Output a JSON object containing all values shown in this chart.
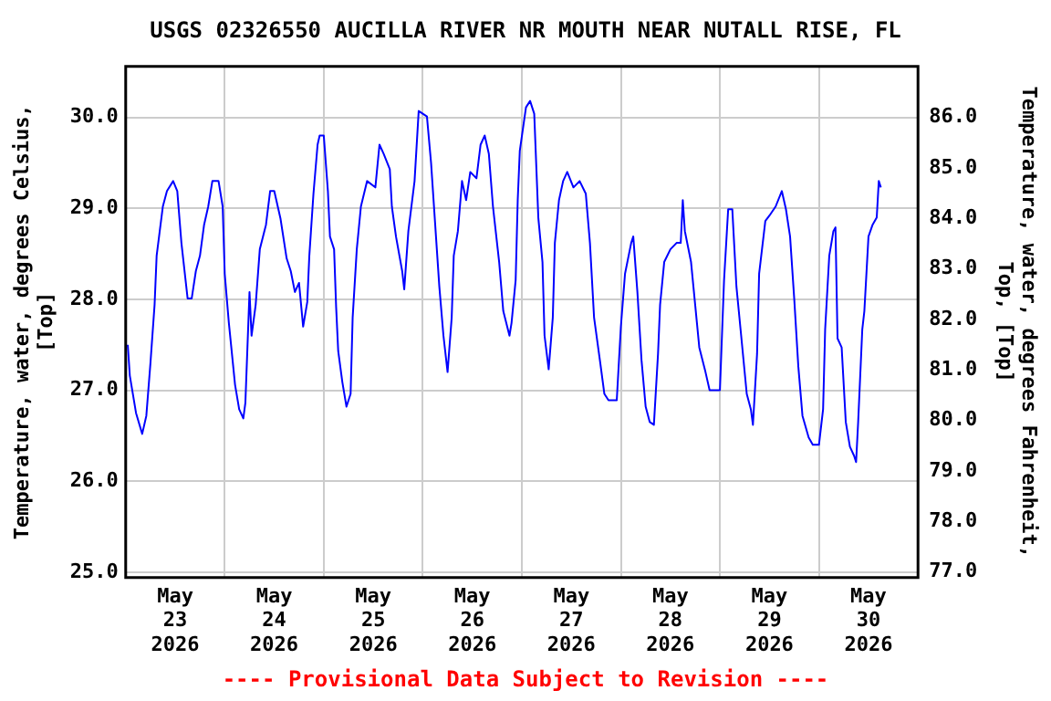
{
  "chart_data": {
    "type": "line",
    "title": "USGS 02326550 AUCILLA RIVER NR MOUTH NEAR NUTALL RISE, FL",
    "ylabel": "Temperature, water, degrees Celsius,\n[Top]",
    "y2label": "Temperature, water, degrees Fahrenheit,\nTop, [Top]",
    "annotations": [
      "---- Provisional Data Subject to Revision ----"
    ],
    "x": [
      "2026-05-23T00:30",
      "2026-05-23T01:00",
      "2026-05-23T02:30",
      "2026-05-23T04:00",
      "2026-05-23T05:00",
      "2026-05-23T06:00",
      "2026-05-23T07:00",
      "2026-05-23T07:30",
      "2026-05-23T09:00",
      "2026-05-23T10:00",
      "2026-05-23T11:30",
      "2026-05-23T12:30",
      "2026-05-23T13:30",
      "2026-05-23T15:00",
      "2026-05-23T16:00",
      "2026-05-23T17:00",
      "2026-05-23T18:00",
      "2026-05-23T19:00",
      "2026-05-23T20:00",
      "2026-05-23T21:00",
      "2026-05-23T22:30",
      "2026-05-23T23:30",
      "2026-05-24T00:00",
      "2026-05-24T01:00",
      "2026-05-24T02:30",
      "2026-05-24T03:30",
      "2026-05-24T04:30",
      "2026-05-24T05:00",
      "2026-05-24T06:00",
      "2026-05-24T06:30",
      "2026-05-24T07:30",
      "2026-05-24T08:30",
      "2026-05-24T10:00",
      "2026-05-24T11:00",
      "2026-05-24T12:00",
      "2026-05-24T13:00",
      "2026-05-24T13:30",
      "2026-05-24T15:00",
      "2026-05-24T16:00",
      "2026-05-24T17:00",
      "2026-05-24T18:00",
      "2026-05-24T19:00",
      "2026-05-24T20:00",
      "2026-05-24T20:30",
      "2026-05-24T21:30",
      "2026-05-24T22:30",
      "2026-05-24T23:00",
      "2026-05-25T00:00",
      "2026-05-25T01:00",
      "2026-05-25T01:30",
      "2026-05-25T02:30",
      "2026-05-25T03:00",
      "2026-05-25T03:30",
      "2026-05-25T04:30",
      "2026-05-25T05:30",
      "2026-05-25T06:30",
      "2026-05-25T07:00",
      "2026-05-25T08:00",
      "2026-05-25T09:00",
      "2026-05-25T10:30",
      "2026-05-25T12:30",
      "2026-05-25T13:30",
      "2026-05-25T14:30",
      "2026-05-25T16:00",
      "2026-05-25T16:30",
      "2026-05-25T17:30",
      "2026-05-25T19:00",
      "2026-05-25T19:30",
      "2026-05-25T20:30",
      "2026-05-25T22:00",
      "2026-05-25T23:00",
      "2026-05-26T00:00",
      "2026-05-26T01:00",
      "2026-05-26T02:00",
      "2026-05-26T03:00",
      "2026-05-26T04:00",
      "2026-05-26T05:00",
      "2026-05-26T06:00",
      "2026-05-26T07:00",
      "2026-05-26T07:30",
      "2026-05-26T08:30",
      "2026-05-26T09:30",
      "2026-05-26T10:30",
      "2026-05-26T11:30",
      "2026-05-26T13:00",
      "2026-05-26T14:00",
      "2026-05-26T15:00",
      "2026-05-26T16:00",
      "2026-05-26T17:00",
      "2026-05-26T18:30",
      "2026-05-26T19:30",
      "2026-05-26T21:00",
      "2026-05-26T21:30",
      "2026-05-26T22:30",
      "2026-05-26T23:00",
      "2026-05-26T23:30",
      "2026-05-27T01:00",
      "2026-05-27T02:00",
      "2026-05-27T03:00",
      "2026-05-27T04:00",
      "2026-05-27T05:00",
      "2026-05-27T05:30",
      "2026-05-27T06:30",
      "2026-05-27T07:30",
      "2026-05-27T08:00",
      "2026-05-27T09:00",
      "2026-05-27T10:00",
      "2026-05-27T11:00",
      "2026-05-27T12:30",
      "2026-05-27T14:00",
      "2026-05-27T15:30",
      "2026-05-27T16:30",
      "2026-05-27T17:30",
      "2026-05-27T19:00",
      "2026-05-27T20:00",
      "2026-05-27T21:00",
      "2026-05-27T23:00",
      "2026-05-28T00:00",
      "2026-05-28T01:00",
      "2026-05-28T02:30",
      "2026-05-28T03:00",
      "2026-05-28T04:00",
      "2026-05-28T05:00",
      "2026-05-28T06:00",
      "2026-05-28T07:00",
      "2026-05-28T08:00",
      "2026-05-28T09:00",
      "2026-05-28T09:30",
      "2026-05-28T10:30",
      "2026-05-28T12:00",
      "2026-05-28T13:30",
      "2026-05-28T14:30",
      "2026-05-28T15:00",
      "2026-05-28T15:30",
      "2026-05-28T17:00",
      "2026-05-28T18:00",
      "2026-05-28T19:00",
      "2026-05-28T20:30",
      "2026-05-28T21:30",
      "2026-05-28T23:00",
      "2026-05-29T00:00",
      "2026-05-29T01:00",
      "2026-05-29T02:00",
      "2026-05-29T03:00",
      "2026-05-29T04:00",
      "2026-05-29T05:00",
      "2026-05-29T06:30",
      "2026-05-29T07:30",
      "2026-05-29T08:00",
      "2026-05-29T09:00",
      "2026-05-29T09:30",
      "2026-05-29T11:00",
      "2026-05-29T12:00",
      "2026-05-29T13:30",
      "2026-05-29T15:00",
      "2026-05-29T16:00",
      "2026-05-29T17:00",
      "2026-05-29T18:00",
      "2026-05-29T19:00",
      "2026-05-29T20:00",
      "2026-05-29T21:30",
      "2026-05-29T22:30",
      "2026-05-30T00:00",
      "2026-05-30T01:00",
      "2026-05-30T01:30",
      "2026-05-30T02:30",
      "2026-05-30T03:30",
      "2026-05-30T04:00",
      "2026-05-30T04:30",
      "2026-05-30T05:30",
      "2026-05-30T06:30",
      "2026-05-30T07:30",
      "2026-05-30T08:30",
      "2026-05-30T09:00",
      "2026-05-30T09:30",
      "2026-05-30T10:30",
      "2026-05-30T11:00",
      "2026-05-30T12:00",
      "2026-05-30T13:00",
      "2026-05-30T14:00",
      "2026-05-30T14:30",
      "2026-05-30T15:00"
    ],
    "series": [
      {
        "color": "#0000ff",
        "values": [
          27.5,
          27.16,
          26.75,
          26.52,
          26.72,
          27.3,
          27.94,
          28.48,
          29.02,
          29.19,
          29.3,
          29.19,
          28.62,
          28.01,
          28.01,
          28.31,
          28.48,
          28.82,
          29.02,
          29.3,
          29.3,
          29.02,
          28.28,
          27.74,
          27.06,
          26.79,
          26.69,
          26.86,
          28.08,
          27.6,
          27.94,
          28.55,
          28.82,
          29.19,
          29.19,
          28.99,
          28.89,
          28.45,
          28.31,
          28.08,
          28.18,
          27.7,
          27.97,
          28.48,
          29.16,
          29.7,
          29.8,
          29.8,
          29.19,
          28.69,
          28.55,
          27.91,
          27.43,
          27.09,
          26.82,
          26.96,
          27.8,
          28.55,
          29.02,
          29.3,
          29.23,
          29.7,
          29.6,
          29.43,
          29.02,
          28.69,
          28.31,
          28.11,
          28.75,
          29.3,
          30.07,
          30.04,
          30.01,
          29.5,
          28.82,
          28.14,
          27.6,
          27.2,
          27.8,
          28.48,
          28.75,
          29.3,
          29.09,
          29.4,
          29.33,
          29.7,
          29.8,
          29.6,
          29.02,
          28.41,
          27.87,
          27.6,
          27.74,
          28.21,
          29.09,
          29.63,
          30.11,
          30.18,
          30.04,
          28.89,
          28.41,
          27.6,
          27.23,
          27.8,
          28.62,
          29.09,
          29.3,
          29.4,
          29.23,
          29.3,
          29.16,
          28.62,
          27.8,
          27.3,
          26.96,
          26.89,
          26.89,
          27.7,
          28.28,
          28.62,
          28.69,
          28.08,
          27.33,
          26.82,
          26.65,
          26.62,
          27.4,
          27.94,
          28.41,
          28.55,
          28.62,
          28.62,
          29.09,
          28.75,
          28.41,
          27.94,
          27.47,
          27.2,
          27.0,
          27.0,
          27.0,
          28.21,
          28.99,
          28.99,
          28.14,
          27.67,
          26.96,
          26.79,
          26.62,
          27.4,
          28.28,
          28.86,
          28.92,
          29.02,
          29.19,
          28.99,
          28.69,
          28.01,
          27.26,
          26.72,
          26.48,
          26.4,
          26.4,
          26.79,
          27.67,
          28.48,
          28.75,
          28.79,
          27.57,
          27.47,
          26.65,
          26.38,
          26.28,
          26.21,
          26.65,
          27.67,
          27.87,
          28.69,
          28.82,
          28.9,
          29.3,
          29.23
        ]
      }
    ],
    "xlim": [
      "2026-05-23T00:00",
      "2026-05-31T00:00"
    ],
    "xticks": [
      {
        "value": "2026-05-23T00:00",
        "label": null
      },
      {
        "value": "2026-05-23T12:00",
        "label": "May\n23\n2026"
      },
      {
        "value": "2026-05-24T00:00",
        "label": null
      },
      {
        "value": "2026-05-24T12:00",
        "label": "May\n24\n2026"
      },
      {
        "value": "2026-05-25T00:00",
        "label": null
      },
      {
        "value": "2026-05-25T12:00",
        "label": "May\n25\n2026"
      },
      {
        "value": "2026-05-26T00:00",
        "label": null
      },
      {
        "value": "2026-05-26T12:00",
        "label": "May\n26\n2026"
      },
      {
        "value": "2026-05-27T00:00",
        "label": null
      },
      {
        "value": "2026-05-27T12:00",
        "label": "May\n27\n2026"
      },
      {
        "value": "2026-05-28T00:00",
        "label": null
      },
      {
        "value": "2026-05-28T12:00",
        "label": "May\n28\n2026"
      },
      {
        "value": "2026-05-29T00:00",
        "label": null
      },
      {
        "value": "2026-05-29T12:00",
        "label": "May\n29\n2026"
      },
      {
        "value": "2026-05-30T00:00",
        "label": null
      },
      {
        "value": "2026-05-30T12:00",
        "label": "May\n30\n2026"
      },
      {
        "value": "2026-05-31T00:00",
        "label": null
      }
    ],
    "ylim": [
      24.94,
      30.56
    ],
    "yticks": [
      {
        "value": 25,
        "label": "25.0"
      },
      {
        "value": 26,
        "label": "26.0"
      },
      {
        "value": 27,
        "label": "27.0"
      },
      {
        "value": 28,
        "label": "28.0"
      },
      {
        "value": 29,
        "label": "29.0"
      },
      {
        "value": 30,
        "label": "30.0"
      }
    ],
    "y2lim": [
      76.89,
      87.01
    ],
    "y2ticks": [
      {
        "value": 77,
        "label": "77.0"
      },
      {
        "value": 78,
        "label": "78.0"
      },
      {
        "value": 79,
        "label": "79.0"
      },
      {
        "value": 80,
        "label": "80.0"
      },
      {
        "value": 81,
        "label": "81.0"
      },
      {
        "value": 82,
        "label": "82.0"
      },
      {
        "value": 83,
        "label": "83.0"
      },
      {
        "value": 84,
        "label": "84.0"
      },
      {
        "value": 85,
        "label": "85.0"
      },
      {
        "value": 86,
        "label": "86.0"
      }
    ],
    "grid": true,
    "legend": false
  }
}
